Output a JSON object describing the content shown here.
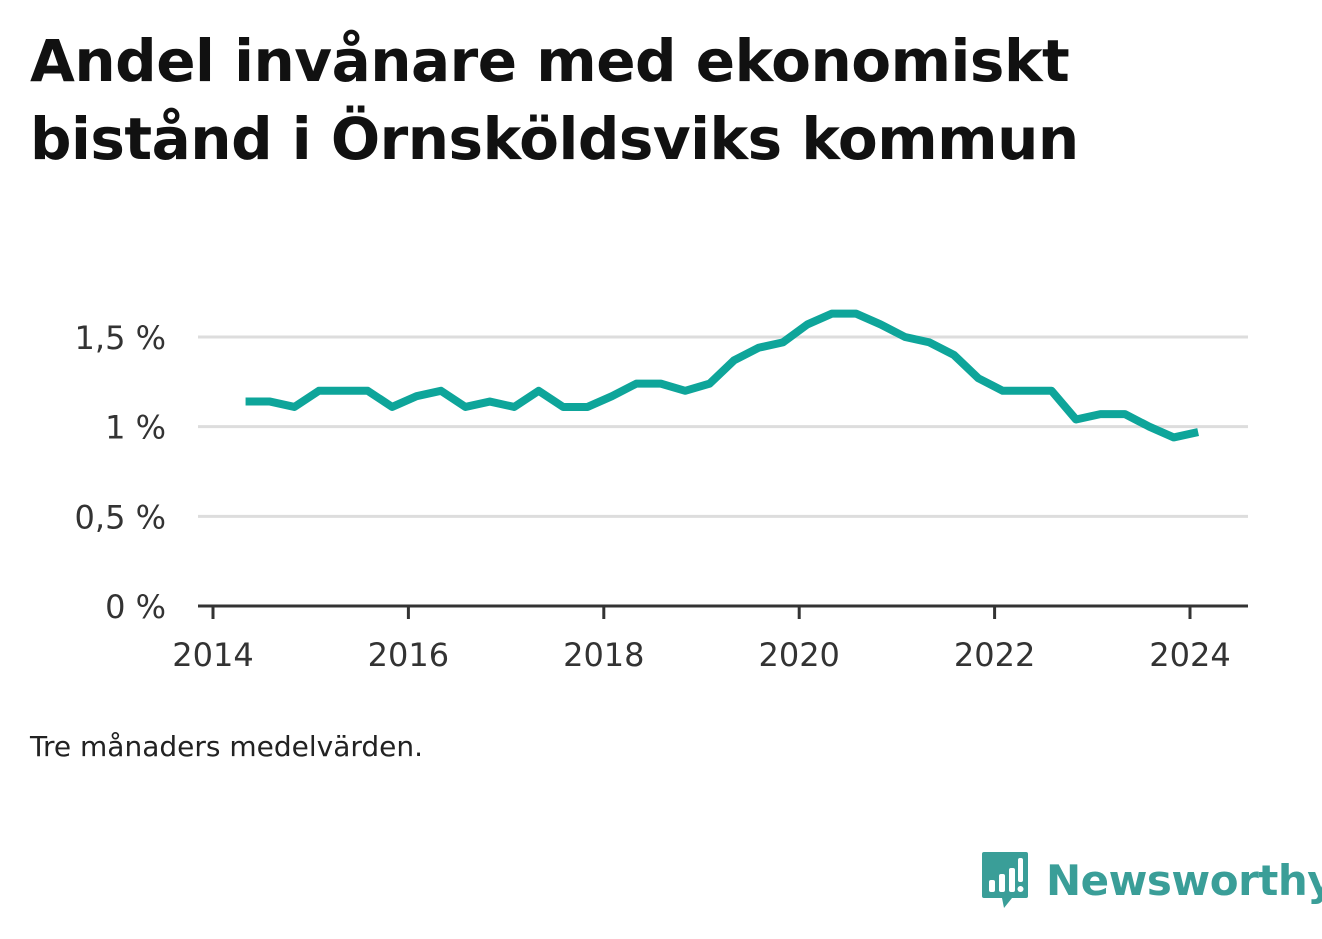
{
  "page": {
    "title": "Andel invånare med ekonomiskt bistånd i Örnsköldsviks kommun",
    "note": "Tre månaders medelvärden.",
    "brand": "Newsworthy"
  },
  "colors": {
    "line": "#0ea59a",
    "grid": "#dddddd",
    "axis": "#333333",
    "brand": "#3a9e98"
  },
  "icons": {
    "brand_mark": "bar-chart-speech-bubble-icon"
  },
  "chart_data": {
    "type": "line",
    "title": "Andel invånare med ekonomiskt bistånd i Örnsköldsviks kommun",
    "xlabel": "",
    "ylabel": "",
    "xlim": [
      2014,
      2024.5
    ],
    "ylim": [
      0,
      1.5
    ],
    "grid": true,
    "x_ticks": [
      {
        "value": 2014,
        "label": "2014"
      },
      {
        "value": 2016,
        "label": "2016"
      },
      {
        "value": 2018,
        "label": "2018"
      },
      {
        "value": 2020,
        "label": "2020"
      },
      {
        "value": 2022,
        "label": "2022"
      },
      {
        "value": 2024,
        "label": "2024"
      }
    ],
    "y_ticks": [
      {
        "value": 0,
        "label": "0 %"
      },
      {
        "value": 0.5,
        "label": "0,5 %"
      },
      {
        "value": 1,
        "label": "1 %"
      },
      {
        "value": 1.5,
        "label": "1,5 %"
      }
    ],
    "series": [
      {
        "x": [
          "2014-05",
          "2014-08",
          "2014-11",
          "2015-02",
          "2015-05",
          "2015-08",
          "2015-11",
          "2016-02",
          "2016-05",
          "2016-08",
          "2016-11",
          "2017-02",
          "2017-05",
          "2017-08",
          "2017-11",
          "2018-02",
          "2018-05",
          "2018-08",
          "2018-11",
          "2019-02",
          "2019-05",
          "2019-08",
          "2019-11",
          "2020-02",
          "2020-05",
          "2020-08",
          "2020-11",
          "2021-02",
          "2021-05",
          "2021-08",
          "2021-11",
          "2022-02",
          "2022-05",
          "2022-08",
          "2022-11",
          "2023-02",
          "2023-05",
          "2023-08",
          "2023-11",
          "2024-02"
        ],
        "values": [
          1.14,
          1.14,
          1.11,
          1.2,
          1.2,
          1.2,
          1.11,
          1.17,
          1.2,
          1.11,
          1.14,
          1.11,
          1.2,
          1.11,
          1.11,
          1.17,
          1.24,
          1.24,
          1.2,
          1.24,
          1.37,
          1.44,
          1.47,
          1.57,
          1.63,
          1.63,
          1.57,
          1.5,
          1.47,
          1.4,
          1.27,
          1.2,
          1.2,
          1.2,
          1.04,
          1.07,
          1.07,
          1.0,
          0.94,
          0.97
        ]
      }
    ]
  }
}
